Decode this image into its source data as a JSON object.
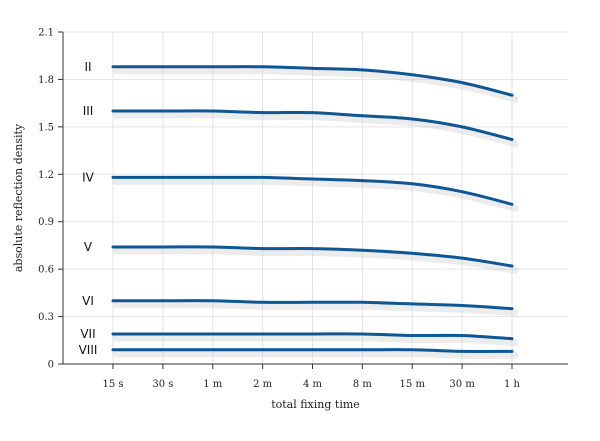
{
  "chart_data": {
    "type": "line",
    "xlabel": "total fixing time",
    "ylabel": "absolute reflection density",
    "categories": [
      "15 s",
      "30 s",
      "1 m",
      "2 m",
      "4 m",
      "8 m",
      "15 m",
      "30 m",
      "1 h"
    ],
    "yticks": [
      "0",
      "0.3",
      "0.6",
      "0.9",
      "1.2",
      "1.5",
      "1.8",
      "2.1"
    ],
    "ylim": [
      0,
      2.1
    ],
    "grid": true,
    "line_color": "#0f5694",
    "series": [
      {
        "name": "II",
        "values": [
          1.88,
          1.88,
          1.88,
          1.88,
          1.87,
          1.86,
          1.83,
          1.78,
          1.7
        ]
      },
      {
        "name": "III",
        "values": [
          1.6,
          1.6,
          1.6,
          1.59,
          1.59,
          1.57,
          1.55,
          1.5,
          1.42
        ]
      },
      {
        "name": "IV",
        "values": [
          1.18,
          1.18,
          1.18,
          1.18,
          1.17,
          1.16,
          1.14,
          1.09,
          1.01
        ]
      },
      {
        "name": "V",
        "values": [
          0.74,
          0.74,
          0.74,
          0.73,
          0.73,
          0.72,
          0.7,
          0.67,
          0.62
        ]
      },
      {
        "name": "VI",
        "values": [
          0.4,
          0.4,
          0.4,
          0.39,
          0.39,
          0.39,
          0.38,
          0.37,
          0.35
        ]
      },
      {
        "name": "VII",
        "values": [
          0.19,
          0.19,
          0.19,
          0.19,
          0.19,
          0.19,
          0.18,
          0.18,
          0.16
        ]
      },
      {
        "name": "VIII",
        "values": [
          0.09,
          0.09,
          0.09,
          0.09,
          0.09,
          0.09,
          0.09,
          0.08,
          0.08
        ]
      }
    ]
  }
}
